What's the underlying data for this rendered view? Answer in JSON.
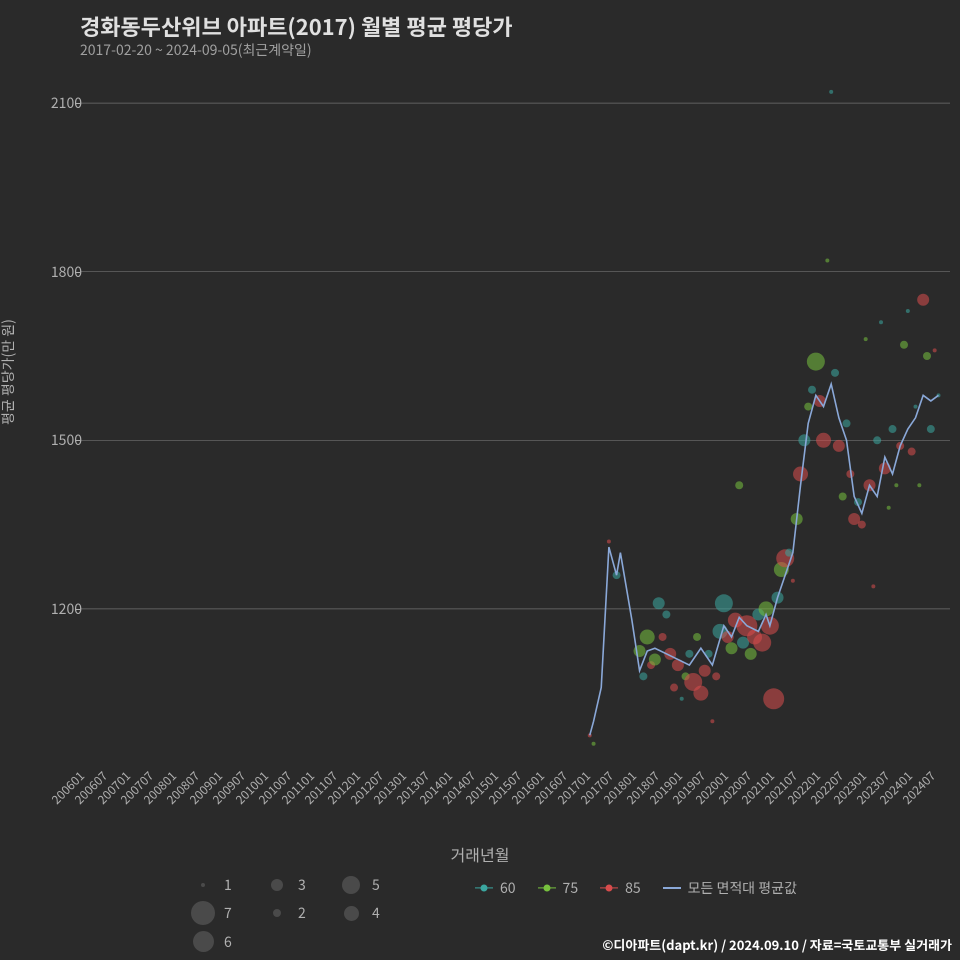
{
  "title": "경화동두산위브 아파트(2017) 월별 평균 평당가",
  "subtitle": "2017-02-20 ~ 2024-09-05(최근계약일)",
  "y_label": "평균 평당가(만 원)",
  "x_label": "거래년월",
  "credit": "©디아파트(dapt.kr) / 2024.09.10 / 자료=국토교통부 실거래가",
  "background_color": "#2a2a2a",
  "grid_color": "#707070",
  "ylim": [
    940,
    2150
  ],
  "xlim": [
    "200601",
    "202412"
  ],
  "y_ticks": [
    1200,
    1500,
    1800,
    2100
  ],
  "x_ticks": [
    "200601",
    "200607",
    "200701",
    "200707",
    "200801",
    "200807",
    "200901",
    "200907",
    "201001",
    "201007",
    "201101",
    "201107",
    "201201",
    "201207",
    "201301",
    "201307",
    "201401",
    "201407",
    "201501",
    "201507",
    "201601",
    "201607",
    "201701",
    "201707",
    "201801",
    "201807",
    "201901",
    "201907",
    "202001",
    "202007",
    "202101",
    "202107",
    "202201",
    "202207",
    "202301",
    "202307",
    "202401",
    "202407"
  ],
  "series_colors": {
    "60": "#3ba7a0",
    "75": "#77c13e",
    "85": "#d84c4c",
    "avg": "#8aa8d8"
  },
  "size_legend": [
    {
      "n": 1,
      "d": 4
    },
    {
      "n": 3,
      "d": 12
    },
    {
      "n": 5,
      "d": 18
    },
    {
      "n": 7,
      "d": 24
    },
    {
      "n": 2,
      "d": 8
    },
    {
      "n": 4,
      "d": 15
    },
    {
      "n": 6,
      "d": 21
    }
  ],
  "color_legend": [
    {
      "label": "60",
      "color": "#3ba7a0",
      "type": "dot"
    },
    {
      "label": "75",
      "color": "#77c13e",
      "type": "dot"
    },
    {
      "label": "85",
      "color": "#d84c4c",
      "type": "dot"
    },
    {
      "label": "모든 면적대 평균값",
      "color": "#8aa8d8",
      "type": "line"
    }
  ],
  "avg_line": [
    {
      "x": "201702",
      "y": 975
    },
    {
      "x": "201703",
      "y": 1000
    },
    {
      "x": "201705",
      "y": 1060
    },
    {
      "x": "201707",
      "y": 1310
    },
    {
      "x": "201709",
      "y": 1260
    },
    {
      "x": "201710",
      "y": 1300
    },
    {
      "x": "201712",
      "y": 1220
    },
    {
      "x": "201801",
      "y": 1180
    },
    {
      "x": "201803",
      "y": 1090
    },
    {
      "x": "201805",
      "y": 1125
    },
    {
      "x": "201807",
      "y": 1130
    },
    {
      "x": "201810",
      "y": 1120
    },
    {
      "x": "201901",
      "y": 1110
    },
    {
      "x": "201904",
      "y": 1100
    },
    {
      "x": "201907",
      "y": 1130
    },
    {
      "x": "201910",
      "y": 1100
    },
    {
      "x": "202001",
      "y": 1170
    },
    {
      "x": "202003",
      "y": 1150
    },
    {
      "x": "202005",
      "y": 1185
    },
    {
      "x": "202007",
      "y": 1170
    },
    {
      "x": "202010",
      "y": 1160
    },
    {
      "x": "202012",
      "y": 1190
    },
    {
      "x": "202101",
      "y": 1170
    },
    {
      "x": "202103",
      "y": 1220
    },
    {
      "x": "202105",
      "y": 1260
    },
    {
      "x": "202107",
      "y": 1300
    },
    {
      "x": "202109",
      "y": 1420
    },
    {
      "x": "202111",
      "y": 1530
    },
    {
      "x": "202201",
      "y": 1580
    },
    {
      "x": "202203",
      "y": 1560
    },
    {
      "x": "202205",
      "y": 1600
    },
    {
      "x": "202207",
      "y": 1540
    },
    {
      "x": "202209",
      "y": 1500
    },
    {
      "x": "202211",
      "y": 1400
    },
    {
      "x": "202301",
      "y": 1370
    },
    {
      "x": "202303",
      "y": 1420
    },
    {
      "x": "202305",
      "y": 1400
    },
    {
      "x": "202307",
      "y": 1470
    },
    {
      "x": "202309",
      "y": 1440
    },
    {
      "x": "202311",
      "y": 1490
    },
    {
      "x": "202401",
      "y": 1520
    },
    {
      "x": "202403",
      "y": 1540
    },
    {
      "x": "202405",
      "y": 1580
    },
    {
      "x": "202407",
      "y": 1570
    },
    {
      "x": "202409",
      "y": 1580
    }
  ],
  "points": [
    {
      "x": "201702",
      "y": 975,
      "s": "85",
      "n": 1
    },
    {
      "x": "201703",
      "y": 960,
      "s": "75",
      "n": 1
    },
    {
      "x": "201707",
      "y": 1320,
      "s": "85",
      "n": 1
    },
    {
      "x": "201709",
      "y": 1260,
      "s": "60",
      "n": 2
    },
    {
      "x": "201803",
      "y": 1125,
      "s": "75",
      "n": 3
    },
    {
      "x": "201804",
      "y": 1080,
      "s": "60",
      "n": 2
    },
    {
      "x": "201805",
      "y": 1150,
      "s": "75",
      "n": 4
    },
    {
      "x": "201806",
      "y": 1100,
      "s": "85",
      "n": 2
    },
    {
      "x": "201807",
      "y": 1110,
      "s": "75",
      "n": 3
    },
    {
      "x": "201808",
      "y": 1210,
      "s": "60",
      "n": 3
    },
    {
      "x": "201809",
      "y": 1150,
      "s": "85",
      "n": 2
    },
    {
      "x": "201810",
      "y": 1190,
      "s": "60",
      "n": 2
    },
    {
      "x": "201811",
      "y": 1120,
      "s": "85",
      "n": 3
    },
    {
      "x": "201812",
      "y": 1060,
      "s": "85",
      "n": 2
    },
    {
      "x": "201901",
      "y": 1100,
      "s": "85",
      "n": 3
    },
    {
      "x": "201902",
      "y": 1040,
      "s": "60",
      "n": 1
    },
    {
      "x": "201903",
      "y": 1080,
      "s": "75",
      "n": 2
    },
    {
      "x": "201904",
      "y": 1120,
      "s": "60",
      "n": 2
    },
    {
      "x": "201905",
      "y": 1070,
      "s": "85",
      "n": 5
    },
    {
      "x": "201906",
      "y": 1150,
      "s": "75",
      "n": 2
    },
    {
      "x": "201907",
      "y": 1050,
      "s": "85",
      "n": 4
    },
    {
      "x": "201908",
      "y": 1090,
      "s": "85",
      "n": 3
    },
    {
      "x": "201909",
      "y": 1120,
      "s": "60",
      "n": 2
    },
    {
      "x": "201910",
      "y": 1000,
      "s": "85",
      "n": 1
    },
    {
      "x": "201911",
      "y": 1080,
      "s": "85",
      "n": 2
    },
    {
      "x": "201912",
      "y": 1160,
      "s": "60",
      "n": 4
    },
    {
      "x": "202001",
      "y": 1210,
      "s": "60",
      "n": 5
    },
    {
      "x": "202002",
      "y": 1150,
      "s": "85",
      "n": 3
    },
    {
      "x": "202003",
      "y": 1130,
      "s": "75",
      "n": 3
    },
    {
      "x": "202004",
      "y": 1180,
      "s": "85",
      "n": 4
    },
    {
      "x": "202005",
      "y": 1420,
      "s": "75",
      "n": 2
    },
    {
      "x": "202006",
      "y": 1140,
      "s": "60",
      "n": 3
    },
    {
      "x": "202007",
      "y": 1170,
      "s": "85",
      "n": 6
    },
    {
      "x": "202008",
      "y": 1120,
      "s": "75",
      "n": 3
    },
    {
      "x": "202009",
      "y": 1150,
      "s": "85",
      "n": 4
    },
    {
      "x": "202010",
      "y": 1190,
      "s": "60",
      "n": 3
    },
    {
      "x": "202011",
      "y": 1140,
      "s": "85",
      "n": 5
    },
    {
      "x": "202012",
      "y": 1200,
      "s": "75",
      "n": 4
    },
    {
      "x": "202101",
      "y": 1170,
      "s": "85",
      "n": 5
    },
    {
      "x": "202102",
      "y": 1040,
      "s": "85",
      "n": 6
    },
    {
      "x": "202103",
      "y": 1220,
      "s": "60",
      "n": 3
    },
    {
      "x": "202104",
      "y": 1270,
      "s": "75",
      "n": 4
    },
    {
      "x": "202105",
      "y": 1290,
      "s": "85",
      "n": 5
    },
    {
      "x": "202106",
      "y": 1300,
      "s": "60",
      "n": 2
    },
    {
      "x": "202107",
      "y": 1250,
      "s": "85",
      "n": 1
    },
    {
      "x": "202108",
      "y": 1360,
      "s": "75",
      "n": 3
    },
    {
      "x": "202109",
      "y": 1440,
      "s": "85",
      "n": 4
    },
    {
      "x": "202110",
      "y": 1500,
      "s": "60",
      "n": 3
    },
    {
      "x": "202111",
      "y": 1560,
      "s": "75",
      "n": 2
    },
    {
      "x": "202112",
      "y": 1590,
      "s": "60",
      "n": 2
    },
    {
      "x": "202201",
      "y": 1640,
      "s": "75",
      "n": 5
    },
    {
      "x": "202202",
      "y": 1570,
      "s": "85",
      "n": 3
    },
    {
      "x": "202203",
      "y": 1500,
      "s": "85",
      "n": 4
    },
    {
      "x": "202204",
      "y": 1820,
      "s": "75",
      "n": 1
    },
    {
      "x": "202205",
      "y": 2120,
      "s": "60",
      "n": 1
    },
    {
      "x": "202206",
      "y": 1620,
      "s": "60",
      "n": 2
    },
    {
      "x": "202207",
      "y": 1490,
      "s": "85",
      "n": 3
    },
    {
      "x": "202208",
      "y": 1400,
      "s": "75",
      "n": 2
    },
    {
      "x": "202209",
      "y": 1530,
      "s": "60",
      "n": 2
    },
    {
      "x": "202210",
      "y": 1440,
      "s": "85",
      "n": 2
    },
    {
      "x": "202211",
      "y": 1360,
      "s": "85",
      "n": 3
    },
    {
      "x": "202212",
      "y": 1390,
      "s": "60",
      "n": 2
    },
    {
      "x": "202301",
      "y": 1350,
      "s": "85",
      "n": 2
    },
    {
      "x": "202302",
      "y": 1680,
      "s": "75",
      "n": 1
    },
    {
      "x": "202303",
      "y": 1420,
      "s": "85",
      "n": 3
    },
    {
      "x": "202304",
      "y": 1240,
      "s": "85",
      "n": 1
    },
    {
      "x": "202305",
      "y": 1500,
      "s": "60",
      "n": 2
    },
    {
      "x": "202306",
      "y": 1710,
      "s": "60",
      "n": 1
    },
    {
      "x": "202307",
      "y": 1450,
      "s": "85",
      "n": 3
    },
    {
      "x": "202308",
      "y": 1380,
      "s": "75",
      "n": 1
    },
    {
      "x": "202309",
      "y": 1520,
      "s": "60",
      "n": 2
    },
    {
      "x": "202310",
      "y": 1420,
      "s": "75",
      "n": 1
    },
    {
      "x": "202311",
      "y": 1490,
      "s": "85",
      "n": 2
    },
    {
      "x": "202312",
      "y": 1670,
      "s": "75",
      "n": 2
    },
    {
      "x": "202401",
      "y": 1730,
      "s": "60",
      "n": 1
    },
    {
      "x": "202402",
      "y": 1480,
      "s": "85",
      "n": 2
    },
    {
      "x": "202403",
      "y": 1560,
      "s": "60",
      "n": 1
    },
    {
      "x": "202404",
      "y": 1420,
      "s": "75",
      "n": 1
    },
    {
      "x": "202405",
      "y": 1750,
      "s": "85",
      "n": 3
    },
    {
      "x": "202406",
      "y": 1650,
      "s": "75",
      "n": 2
    },
    {
      "x": "202407",
      "y": 1520,
      "s": "60",
      "n": 2
    },
    {
      "x": "202408",
      "y": 1660,
      "s": "85",
      "n": 1
    },
    {
      "x": "202409",
      "y": 1580,
      "s": "60",
      "n": 1
    }
  ],
  "title_fontsize": 22,
  "label_fontsize": 14
}
